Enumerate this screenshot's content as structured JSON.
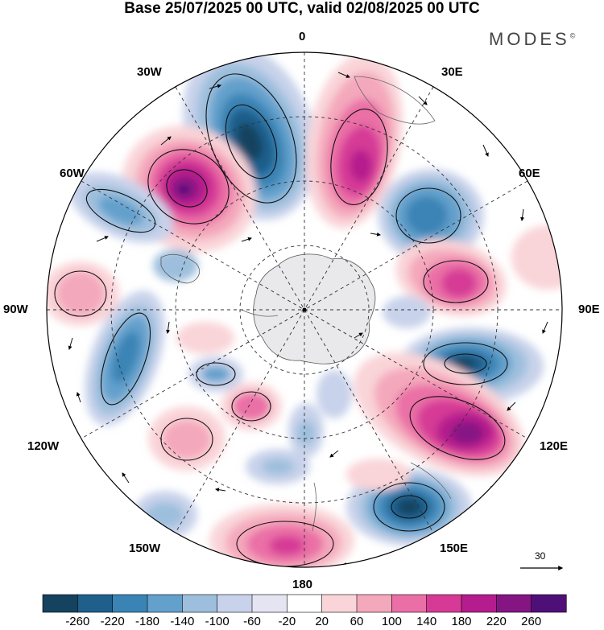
{
  "title": "Base 25/07/2025 00 UTC, valid 02/08/2025 00 UTC",
  "brand": "MODES",
  "brand_mark": "©",
  "longitude_labels": {
    "top": "0",
    "tr": "30E",
    "tl": "30W",
    "r60": "60E",
    "l60": "60W",
    "r90": "90E",
    "l90": "90W",
    "r120": "120E",
    "l120": "120W",
    "r150": "150E",
    "l150": "150W",
    "bottom": "180"
  },
  "reference_vector": "30",
  "colorbar": {
    "ticks": [
      "-260",
      "-220",
      "-180",
      "-140",
      "-100",
      "-60",
      "-20",
      "20",
      "60",
      "100",
      "140",
      "180",
      "220",
      "260"
    ],
    "colors": [
      "#15425f",
      "#1e5f8c",
      "#3a84b5",
      "#63a0cc",
      "#9dbfdd",
      "#c8d2ea",
      "#e4e4f2",
      "#ffffff",
      "#f9d4d8",
      "#f4a8bc",
      "#ea6fa6",
      "#d63a96",
      "#b51c8d",
      "#861584",
      "#4f0f78"
    ]
  },
  "anomaly_centers": [
    {
      "name": "low-north-0-30W",
      "sign": "negative",
      "level": "-220"
    },
    {
      "name": "high-north-30E",
      "sign": "positive",
      "level": "220"
    },
    {
      "name": "high-north-45W",
      "sign": "positive",
      "level": "260"
    },
    {
      "name": "low-60E",
      "sign": "negative",
      "level": "-180"
    },
    {
      "name": "high-80E",
      "sign": "positive",
      "level": "180"
    },
    {
      "name": "low-100E",
      "sign": "negative",
      "level": "-220"
    },
    {
      "name": "high-120E",
      "sign": "positive",
      "level": "260"
    },
    {
      "name": "low-150E",
      "sign": "negative",
      "level": "-260"
    },
    {
      "name": "high-180",
      "sign": "positive",
      "level": "180"
    },
    {
      "name": "low-100W",
      "sign": "negative",
      "level": "-180"
    },
    {
      "name": "high-90W",
      "sign": "positive",
      "level": "100"
    },
    {
      "name": "low-60W",
      "sign": "negative",
      "level": "-140"
    }
  ]
}
